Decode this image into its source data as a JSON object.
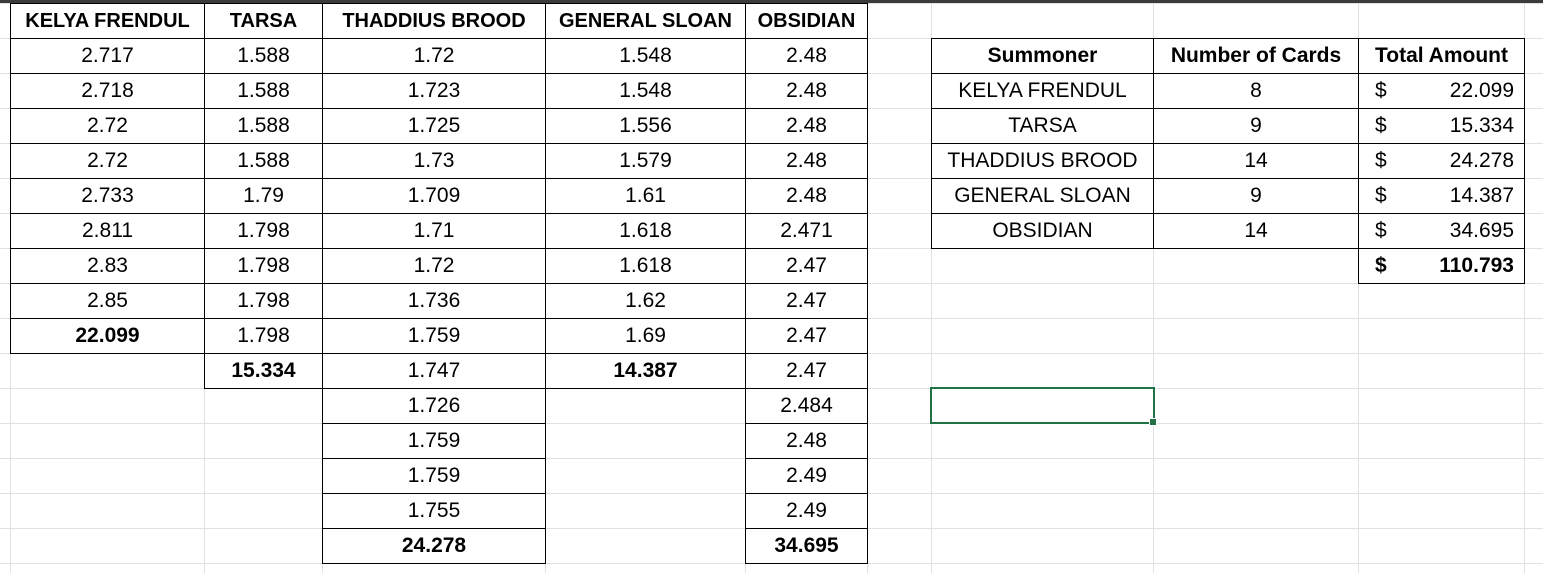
{
  "columns_left": [
    {
      "header": "KELYA FRENDUL",
      "values": [
        "2.717",
        "2.718",
        "2.72",
        "2.72",
        "2.733",
        "2.811",
        "2.83",
        "2.85"
      ],
      "total": "22.099"
    },
    {
      "header": "TARSA",
      "values": [
        "1.588",
        "1.588",
        "1.588",
        "1.588",
        "1.79",
        "1.798",
        "1.798",
        "1.798",
        "1.798"
      ],
      "total": "15.334"
    },
    {
      "header": "THADDIUS BROOD",
      "values": [
        "1.72",
        "1.723",
        "1.725",
        "1.73",
        "1.709",
        "1.71",
        "1.72",
        "1.736",
        "1.759",
        "1.747",
        "1.726",
        "1.759",
        "1.759",
        "1.755"
      ],
      "total": "24.278"
    },
    {
      "header": "GENERAL SLOAN",
      "values": [
        "1.548",
        "1.548",
        "1.556",
        "1.579",
        "1.61",
        "1.618",
        "1.618",
        "1.62",
        "1.69"
      ],
      "total": "14.387"
    },
    {
      "header": "OBSIDIAN",
      "values": [
        "2.48",
        "2.48",
        "2.48",
        "2.48",
        "2.48",
        "2.471",
        "2.47",
        "2.47",
        "2.47",
        "2.47",
        "2.484",
        "2.48",
        "2.49",
        "2.49"
      ],
      "total": "34.695"
    }
  ],
  "summary": {
    "headers": [
      "Summoner",
      "Number of Cards",
      "Total Amount"
    ],
    "rows": [
      {
        "summoner": "KELYA FRENDUL",
        "cards": "8",
        "currency": "$",
        "amount": "22.099"
      },
      {
        "summoner": "TARSA",
        "cards": "9",
        "currency": "$",
        "amount": "15.334"
      },
      {
        "summoner": "THADDIUS BROOD",
        "cards": "14",
        "currency": "$",
        "amount": "24.278"
      },
      {
        "summoner": "GENERAL SLOAN",
        "cards": "9",
        "currency": "$",
        "amount": "14.387"
      },
      {
        "summoner": "OBSIDIAN",
        "cards": "14",
        "currency": "$",
        "amount": "34.695"
      }
    ],
    "grand_total": {
      "currency": "$",
      "amount": "110.793"
    }
  },
  "colors": {
    "selection": "#217346",
    "gridline": "#e1e1e1",
    "border": "#000000"
  }
}
